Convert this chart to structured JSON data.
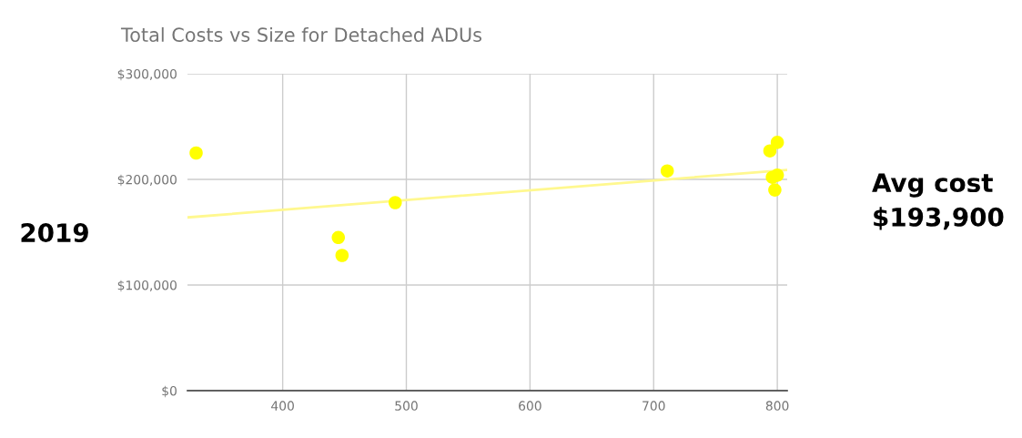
{
  "chart_data": {
    "type": "scatter",
    "title": "Total Costs vs Size for Detached ADUs",
    "series": [
      {
        "marker": "circle",
        "color": "#ffff00",
        "x": [
          330,
          445,
          448,
          491,
          711,
          794,
          800,
          796,
          800,
          798
        ],
        "values": [
          225000,
          145000,
          128000,
          178000,
          208000,
          227000,
          235000,
          202000,
          204000,
          190000
        ]
      },
      {
        "type": "line",
        "color": "#fff88f",
        "x": [
          323,
          808
        ],
        "values": [
          164000,
          209000
        ]
      }
    ],
    "xlim": [
      323,
      808
    ],
    "xticks": [
      400,
      500,
      600,
      700,
      800
    ],
    "ylim": [
      0,
      300000
    ],
    "yticks": [
      {
        "value": 0,
        "label": "$0"
      },
      {
        "value": 100000,
        "label": "$100,000"
      },
      {
        "value": 200000,
        "label": "$200,000"
      },
      {
        "value": 300000,
        "label": "$300,000"
      }
    ],
    "grid": true,
    "annotations": [
      "2019",
      "Avg cost\n$193,900"
    ]
  }
}
